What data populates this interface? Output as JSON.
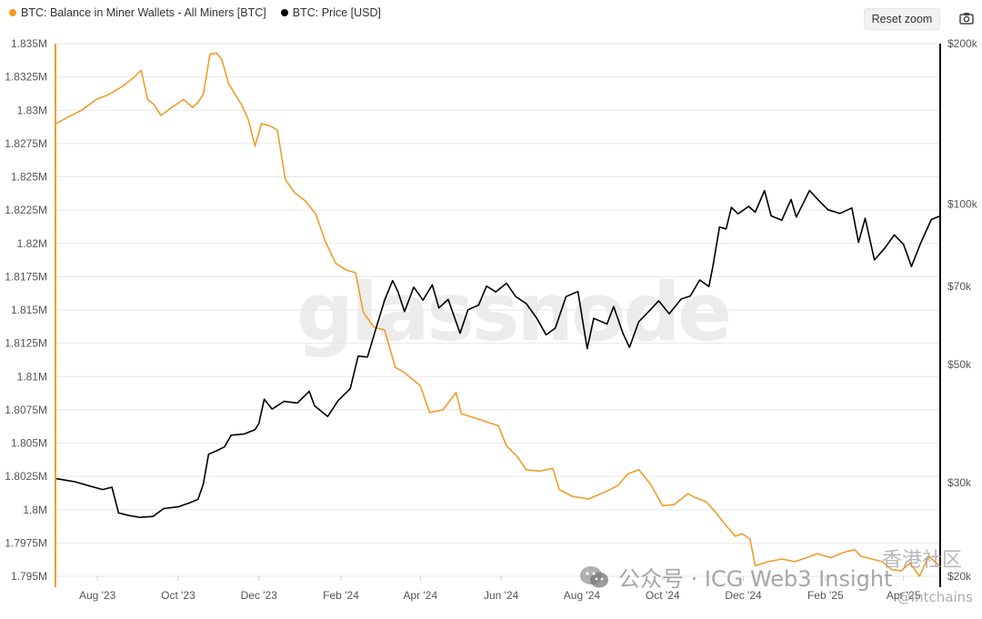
{
  "legend": {
    "miner_label": "BTC: Balance in Miner Wallets - All Miners [BTC]",
    "price_label": "BTC: Price [USD]"
  },
  "toolbar": {
    "reset_label": "Reset zoom"
  },
  "watermarks": {
    "main": "glassnode",
    "wechat": "公众号 · ICG Web3 Insight",
    "corner": "香港社区",
    "handle": "@Intchains"
  },
  "colors": {
    "miner": "#f09d2a",
    "price": "#000000",
    "grid": "#e7e7e7"
  },
  "chart_data": {
    "type": "line",
    "x_ticks": [
      "Aug '23",
      "Oct '23",
      "Dec '23",
      "Feb '24",
      "Apr '24",
      "Jun '24",
      "Aug '24",
      "Oct '24",
      "Dec '24",
      "Feb '25",
      "Apr '25"
    ],
    "x_range": [
      "2023-07-01",
      "2025-04-28"
    ],
    "y_left": {
      "ticks": [
        "1.835M",
        "1.8325M",
        "1.83M",
        "1.8275M",
        "1.825M",
        "1.8225M",
        "1.82M",
        "1.8175M",
        "1.815M",
        "1.8125M",
        "1.81M",
        "1.8075M",
        "1.805M",
        "1.8025M",
        "1.8M",
        "1.7975M",
        "1.795M"
      ],
      "range": [
        1795000,
        1835000
      ]
    },
    "y_right": {
      "scale": "log",
      "ticks": [
        "$200k",
        "$100k",
        "$70k",
        "$50k",
        "$30k",
        "$20k"
      ],
      "values": [
        200000,
        100000,
        70000,
        50000,
        30000,
        20000
      ],
      "range": [
        20000,
        200000
      ]
    },
    "series": [
      {
        "name": "BTC: Balance in Miner Wallets - All Miners [BTC]",
        "axis": "left",
        "points": [
          [
            "2023-07-01",
            1829000
          ],
          [
            "2023-07-10",
            1829500
          ],
          [
            "2023-07-20",
            1830000
          ],
          [
            "2023-07-31",
            1830800
          ],
          [
            "2023-08-10",
            1831200
          ],
          [
            "2023-08-20",
            1831800
          ],
          [
            "2023-08-29",
            1832500
          ],
          [
            "2023-09-03",
            1833000
          ],
          [
            "2023-09-08",
            1830800
          ],
          [
            "2023-09-13",
            1830400
          ],
          [
            "2023-09-18",
            1829600
          ],
          [
            "2023-09-26",
            1830200
          ],
          [
            "2023-10-05",
            1830800
          ],
          [
            "2023-10-12",
            1830200
          ],
          [
            "2023-10-16",
            1830600
          ],
          [
            "2023-10-20",
            1831200
          ],
          [
            "2023-10-25",
            1834200
          ],
          [
            "2023-10-30",
            1834300
          ],
          [
            "2023-11-03",
            1833800
          ],
          [
            "2023-11-08",
            1832000
          ],
          [
            "2023-11-13",
            1831200
          ],
          [
            "2023-11-18",
            1830400
          ],
          [
            "2023-11-23",
            1829300
          ],
          [
            "2023-11-28",
            1827300
          ],
          [
            "2023-12-03",
            1829000
          ],
          [
            "2023-12-10",
            1828800
          ],
          [
            "2023-12-15",
            1828500
          ],
          [
            "2023-12-21",
            1824800
          ],
          [
            "2023-12-28",
            1823800
          ],
          [
            "2024-01-05",
            1823200
          ],
          [
            "2024-01-13",
            1822200
          ],
          [
            "2024-01-20",
            1820200
          ],
          [
            "2024-01-28",
            1818500
          ],
          [
            "2024-02-05",
            1818000
          ],
          [
            "2024-02-12",
            1817800
          ],
          [
            "2024-02-18",
            1814800
          ],
          [
            "2024-02-26",
            1813700
          ],
          [
            "2024-03-05",
            1813500
          ],
          [
            "2024-03-13",
            1810700
          ],
          [
            "2024-03-20",
            1810300
          ],
          [
            "2024-04-01",
            1809300
          ],
          [
            "2024-04-08",
            1807300
          ],
          [
            "2024-04-18",
            1807500
          ],
          [
            "2024-04-28",
            1808800
          ],
          [
            "2024-05-02",
            1807200
          ],
          [
            "2024-05-15",
            1806800
          ],
          [
            "2024-05-30",
            1806300
          ],
          [
            "2024-06-05",
            1804800
          ],
          [
            "2024-06-13",
            1804000
          ],
          [
            "2024-06-20",
            1803000
          ],
          [
            "2024-06-30",
            1802900
          ],
          [
            "2024-07-10",
            1803100
          ],
          [
            "2024-07-15",
            1801500
          ],
          [
            "2024-07-25",
            1801000
          ],
          [
            "2024-08-06",
            1800800
          ],
          [
            "2024-08-20",
            1801400
          ],
          [
            "2024-08-28",
            1801800
          ],
          [
            "2024-09-05",
            1802700
          ],
          [
            "2024-09-13",
            1803000
          ],
          [
            "2024-09-22",
            1801900
          ],
          [
            "2024-10-01",
            1800300
          ],
          [
            "2024-10-10",
            1800400
          ],
          [
            "2024-10-20",
            1801200
          ],
          [
            "2024-10-26",
            1800900
          ],
          [
            "2024-11-03",
            1800600
          ],
          [
            "2024-11-10",
            1799800
          ],
          [
            "2024-11-18",
            1798800
          ],
          [
            "2024-11-25",
            1798000
          ],
          [
            "2024-11-30",
            1798200
          ],
          [
            "2024-12-06",
            1797800
          ],
          [
            "2024-12-10",
            1795800
          ],
          [
            "2024-12-20",
            1796100
          ],
          [
            "2024-12-30",
            1796300
          ],
          [
            "2025-01-09",
            1796100
          ],
          [
            "2025-01-18",
            1796400
          ],
          [
            "2025-01-26",
            1796700
          ],
          [
            "2025-02-05",
            1796400
          ],
          [
            "2025-02-15",
            1796800
          ],
          [
            "2025-02-23",
            1797000
          ],
          [
            "2025-02-28",
            1796500
          ],
          [
            "2025-03-08",
            1796300
          ],
          [
            "2025-03-16",
            1796100
          ],
          [
            "2025-03-23",
            1795500
          ],
          [
            "2025-03-30",
            1795400
          ],
          [
            "2025-04-06",
            1796000
          ],
          [
            "2025-04-13",
            1795000
          ],
          [
            "2025-04-20",
            1796500
          ],
          [
            "2025-04-28",
            1795800
          ]
        ]
      },
      {
        "name": "BTC: Price [USD]",
        "axis": "right",
        "points": [
          [
            "2023-07-01",
            30500
          ],
          [
            "2023-07-08",
            30300
          ],
          [
            "2023-07-15",
            30100
          ],
          [
            "2023-07-25",
            29600
          ],
          [
            "2023-08-05",
            29100
          ],
          [
            "2023-08-12",
            29400
          ],
          [
            "2023-08-17",
            26300
          ],
          [
            "2023-08-25",
            26000
          ],
          [
            "2023-09-02",
            25800
          ],
          [
            "2023-09-12",
            25900
          ],
          [
            "2023-09-20",
            26800
          ],
          [
            "2023-10-01",
            27000
          ],
          [
            "2023-10-10",
            27500
          ],
          [
            "2023-10-16",
            27900
          ],
          [
            "2023-10-20",
            29800
          ],
          [
            "2023-10-24",
            33900
          ],
          [
            "2023-10-30",
            34400
          ],
          [
            "2023-11-05",
            35000
          ],
          [
            "2023-11-10",
            36800
          ],
          [
            "2023-11-20",
            37000
          ],
          [
            "2023-11-28",
            37700
          ],
          [
            "2023-12-01",
            38700
          ],
          [
            "2023-12-05",
            43000
          ],
          [
            "2023-12-11",
            41200
          ],
          [
            "2023-12-20",
            42600
          ],
          [
            "2023-12-30",
            42300
          ],
          [
            "2024-01-08",
            44500
          ],
          [
            "2024-01-12",
            41800
          ],
          [
            "2024-01-22",
            39900
          ],
          [
            "2024-01-30",
            42800
          ],
          [
            "2024-02-08",
            45000
          ],
          [
            "2024-02-14",
            51800
          ],
          [
            "2024-02-21",
            51600
          ],
          [
            "2024-02-28",
            59000
          ],
          [
            "2024-03-05",
            66000
          ],
          [
            "2024-03-11",
            71800
          ],
          [
            "2024-03-15",
            68500
          ],
          [
            "2024-03-20",
            62800
          ],
          [
            "2024-03-27",
            69800
          ],
          [
            "2024-04-03",
            66000
          ],
          [
            "2024-04-10",
            70500
          ],
          [
            "2024-04-15",
            63800
          ],
          [
            "2024-04-22",
            66200
          ],
          [
            "2024-05-01",
            57200
          ],
          [
            "2024-05-07",
            63300
          ],
          [
            "2024-05-15",
            64600
          ],
          [
            "2024-05-21",
            70100
          ],
          [
            "2024-05-28",
            68400
          ],
          [
            "2024-06-05",
            71000
          ],
          [
            "2024-06-12",
            67000
          ],
          [
            "2024-06-20",
            65000
          ],
          [
            "2024-06-28",
            61000
          ],
          [
            "2024-07-05",
            56800
          ],
          [
            "2024-07-12",
            58500
          ],
          [
            "2024-07-20",
            67000
          ],
          [
            "2024-07-29",
            68500
          ],
          [
            "2024-08-05",
            53500
          ],
          [
            "2024-08-10",
            61000
          ],
          [
            "2024-08-20",
            59500
          ],
          [
            "2024-08-25",
            64200
          ],
          [
            "2024-09-01",
            57200
          ],
          [
            "2024-09-06",
            53800
          ],
          [
            "2024-09-13",
            60100
          ],
          [
            "2024-09-22",
            63400
          ],
          [
            "2024-09-28",
            65800
          ],
          [
            "2024-10-06",
            62200
          ],
          [
            "2024-10-15",
            66300
          ],
          [
            "2024-10-22",
            67200
          ],
          [
            "2024-10-29",
            72000
          ],
          [
            "2024-11-05",
            70000
          ],
          [
            "2024-11-08",
            76500
          ],
          [
            "2024-11-13",
            90500
          ],
          [
            "2024-11-18",
            89800
          ],
          [
            "2024-11-22",
            98500
          ],
          [
            "2024-11-27",
            95800
          ],
          [
            "2024-12-05",
            99000
          ],
          [
            "2024-12-10",
            96500
          ],
          [
            "2024-12-17",
            106000
          ],
          [
            "2024-12-22",
            95000
          ],
          [
            "2024-12-30",
            93200
          ],
          [
            "2025-01-06",
            102000
          ],
          [
            "2025-01-10",
            94500
          ],
          [
            "2025-01-20",
            106000
          ],
          [
            "2025-01-27",
            101500
          ],
          [
            "2025-02-03",
            97500
          ],
          [
            "2025-02-12",
            96000
          ],
          [
            "2025-02-21",
            98300
          ],
          [
            "2025-02-26",
            84700
          ],
          [
            "2025-03-03",
            94000
          ],
          [
            "2025-03-10",
            78500
          ],
          [
            "2025-03-18",
            82700
          ],
          [
            "2025-03-25",
            87500
          ],
          [
            "2025-04-01",
            84000
          ],
          [
            "2025-04-07",
            76300
          ],
          [
            "2025-04-14",
            84500
          ],
          [
            "2025-04-22",
            93500
          ],
          [
            "2025-04-28",
            94800
          ]
        ]
      }
    ],
    "grid": "horizontal",
    "legend_position": "top-left"
  }
}
